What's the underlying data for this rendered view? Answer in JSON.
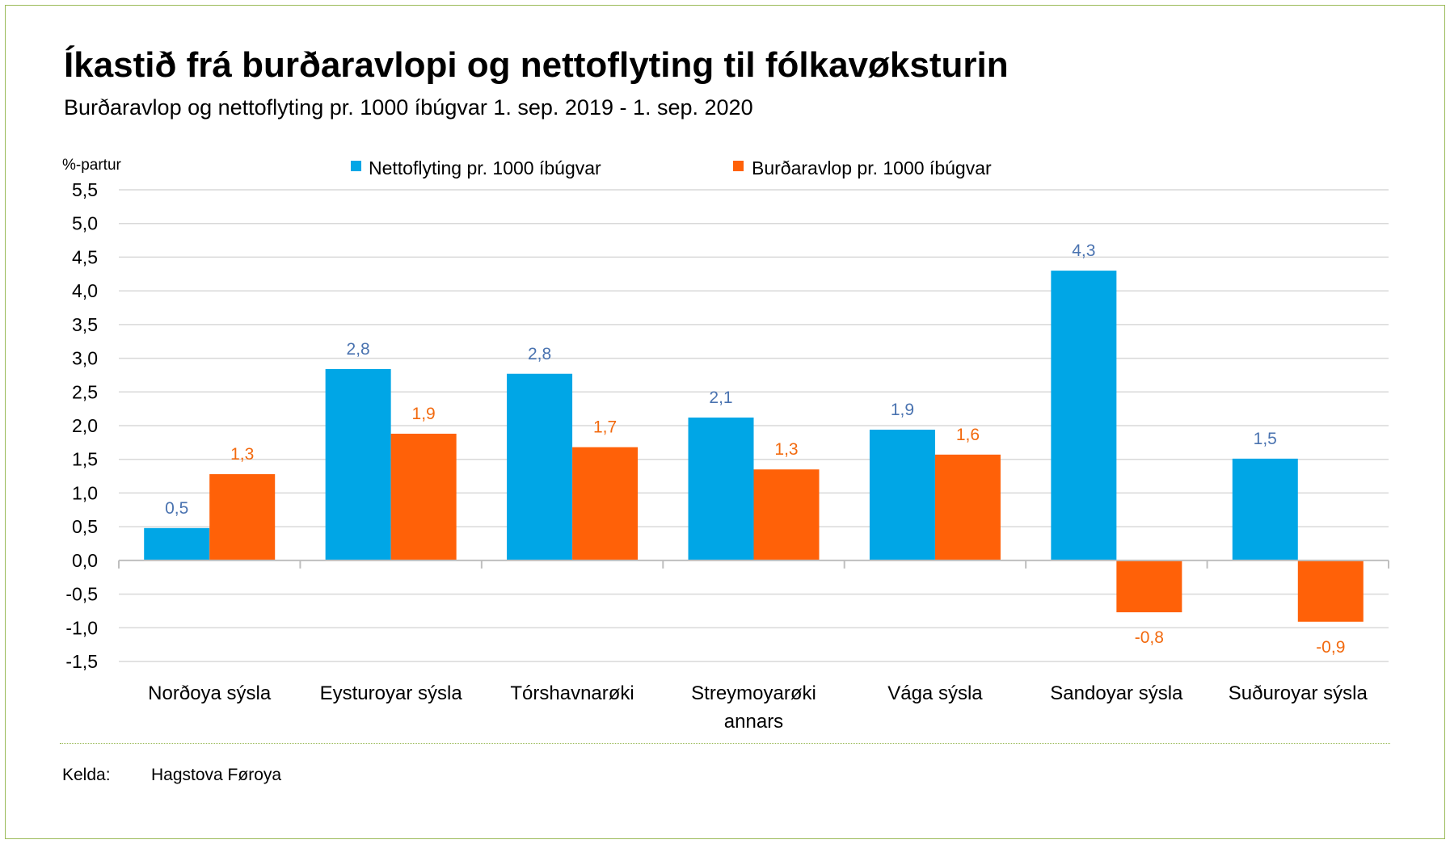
{
  "title": "Íkastið frá burðaravlopi og nettoflyting til fólkavøksturin",
  "subtitle": "Burðaravlop og nettoflyting pr. 1000 íbúgvar 1. sep. 2019 - 1. sep. 2020",
  "source": {
    "label": "Kelda:",
    "value": "Hagstova Føroya"
  },
  "chart_data": {
    "type": "bar",
    "ylabel": "%-partur",
    "ylim": [
      -1.5,
      5.5
    ],
    "ytick_step": 0.5,
    "grid": true,
    "legend_position": "top",
    "categories": [
      [
        "Norðoya sýsla"
      ],
      [
        "Eysturoyar sýsla"
      ],
      [
        "Tórshavnarøki"
      ],
      [
        "Streymoyarøki",
        "annars"
      ],
      [
        "Vága sýsla"
      ],
      [
        "Sandoyar sýsla"
      ],
      [
        "Suðuroyar sýsla"
      ]
    ],
    "series": [
      {
        "name": "Nettoflyting pr. 1000 íbúgvar",
        "color": "#00a6e6",
        "label_color": "#4a73b0",
        "values": [
          0.48,
          2.84,
          2.77,
          2.12,
          1.94,
          4.3,
          1.51
        ],
        "labels": [
          "0,5",
          "2,8",
          "2,8",
          "2,1",
          "1,9",
          "4,3",
          "1,5"
        ]
      },
      {
        "name": "Burðaravlop pr. 1000 íbúgvar",
        "color": "#ff6108",
        "label_color": "#f26a0f",
        "values": [
          1.28,
          1.88,
          1.68,
          1.35,
          1.57,
          -0.77,
          -0.91
        ],
        "labels": [
          "1,3",
          "1,9",
          "1,7",
          "1,3",
          "1,6",
          "-0,8",
          "-0,9"
        ]
      }
    ],
    "ytick_labels": [
      "-1,5",
      "-1,0",
      "-0,5",
      "0,0",
      "0,5",
      "1,0",
      "1,5",
      "2,0",
      "2,5",
      "3,0",
      "3,5",
      "4,0",
      "4,5",
      "5,0",
      "5,5"
    ],
    "colors": {
      "grid": "#d9d9d9",
      "axis": "#bfbfbf",
      "text": "#000000",
      "frame": "#9bbb59"
    }
  }
}
